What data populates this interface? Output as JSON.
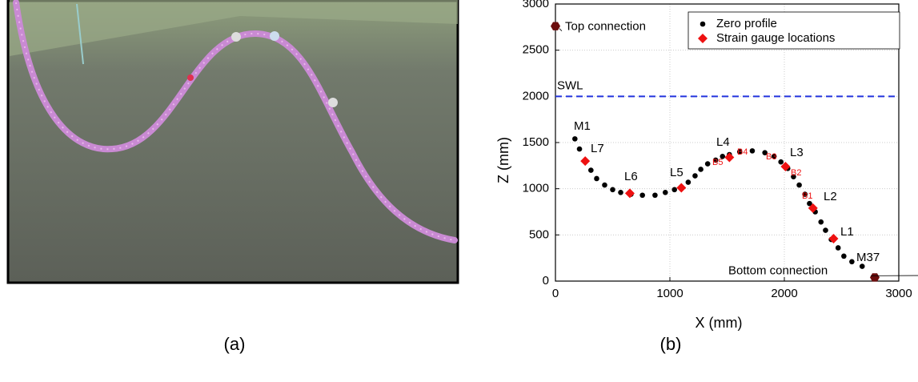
{
  "chart_data": {
    "type": "scatter",
    "xlabel": "X (mm)",
    "ylabel": "Z (mm)",
    "xlim": [
      0,
      3000
    ],
    "ylim": [
      0,
      3000
    ],
    "xticks": [
      0,
      1000,
      2000,
      3000
    ],
    "yticks": [
      0,
      500,
      1000,
      1500,
      2000,
      2500,
      3000
    ],
    "grid": true,
    "legend": "upper right",
    "series": [
      {
        "name": "Zero profile",
        "color": "#000000",
        "marker": "circle",
        "x": [
          170,
          210,
          260,
          310,
          360,
          430,
          500,
          570,
          660,
          760,
          870,
          960,
          1040,
          1100,
          1160,
          1220,
          1270,
          1330,
          1400,
          1460,
          1520,
          1610,
          1720,
          1830,
          1910,
          1970,
          2030,
          2080,
          2130,
          2180,
          2220,
          2270,
          2320,
          2360,
          2410,
          2470,
          2520,
          2590,
          2680
        ],
        "values": [
          1540,
          1430,
          1300,
          1200,
          1110,
          1040,
          990,
          960,
          940,
          930,
          930,
          960,
          990,
          1020,
          1070,
          1140,
          1210,
          1270,
          1310,
          1350,
          1370,
          1400,
          1410,
          1390,
          1350,
          1290,
          1220,
          1130,
          1040,
          940,
          840,
          750,
          640,
          550,
          450,
          360,
          270,
          210,
          160
        ]
      },
      {
        "name": "Strain gauge locations",
        "color": "#ee1111",
        "marker": "diamond",
        "x": [
          260,
          650,
          1100,
          1520,
          2010,
          2250,
          2430
        ],
        "values": [
          1300,
          950,
          1010,
          1340,
          1240,
          790,
          460
        ]
      }
    ],
    "connections": [
      {
        "label": "Top connection",
        "x": 0,
        "y": 2760
      },
      {
        "label": "Bottom connection",
        "x": 2790,
        "y": 40
      }
    ],
    "reference_line": {
      "label": "SWL",
      "y": 2000,
      "color": "#2233dd"
    },
    "annotations": [
      "M1",
      "L7",
      "L6",
      "L5",
      "L4",
      "L3",
      "L2",
      "L1",
      "M37"
    ],
    "gauge_labels": [
      "B1",
      "B2",
      "B3",
      "B4",
      "B5"
    ]
  },
  "captions": [
    "(a)",
    "(b)"
  ]
}
